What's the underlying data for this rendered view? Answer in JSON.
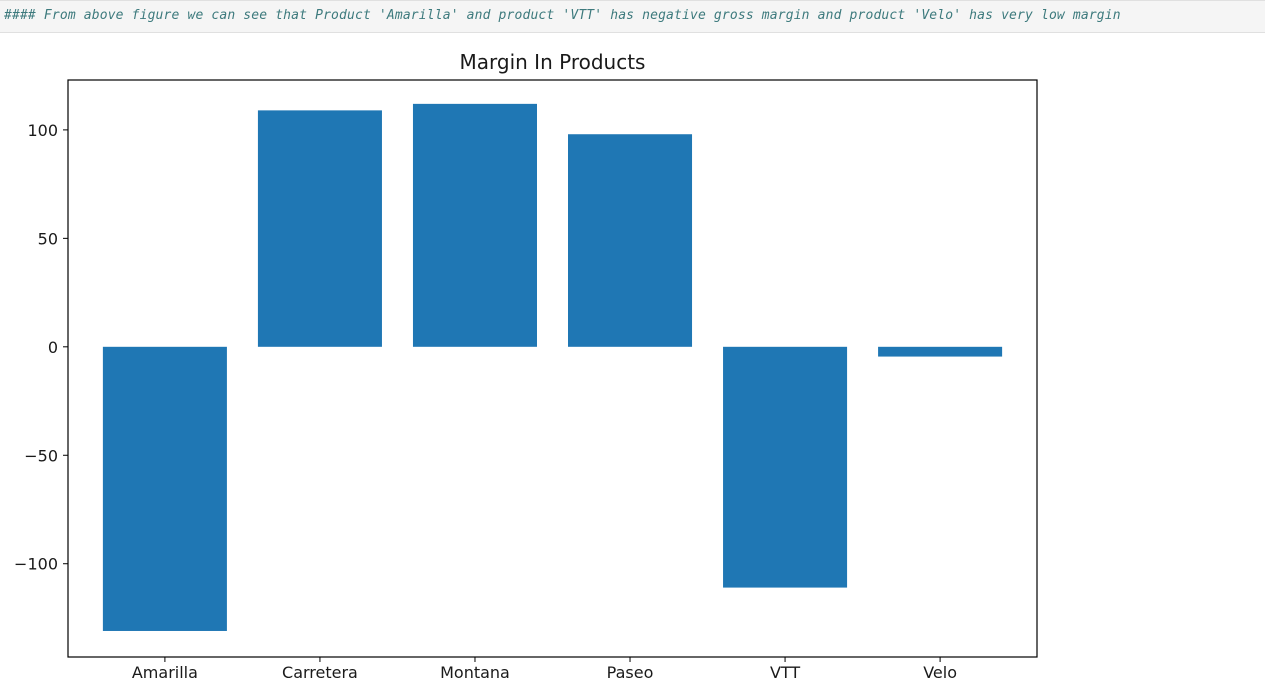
{
  "markdown": {
    "text": "#### From above figure we can see that Product 'Amarilla' and product 'VTT' has negative gross margin and product 'Velo' has very low margin"
  },
  "chart_data": {
    "type": "bar",
    "title": "Margin In Products",
    "xlabel": "",
    "ylabel": "",
    "categories": [
      "Amarilla",
      "Carretera",
      "Montana",
      "Paseo",
      "VTT",
      "Velo"
    ],
    "values": [
      -131,
      109,
      112,
      98,
      -111,
      -4.5
    ],
    "ylim": [
      -143,
      123
    ],
    "yticks": [
      -100,
      -50,
      0,
      50,
      100
    ],
    "ytick_labels": [
      "−100",
      "−50",
      "0",
      "50",
      "100"
    ],
    "bar_color": "#1f77b4",
    "grid": false,
    "legend": "none"
  }
}
